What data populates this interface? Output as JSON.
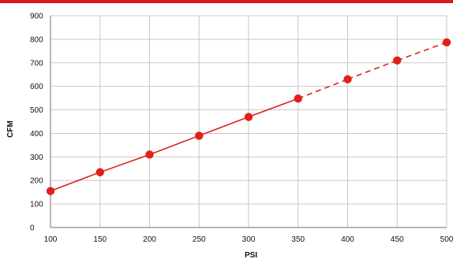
{
  "chart_data": {
    "type": "line",
    "title": "",
    "xlabel": "PSI",
    "ylabel": "CFM",
    "xlim": [
      100,
      500
    ],
    "ylim": [
      0,
      900
    ],
    "x_ticks": [
      100,
      150,
      200,
      250,
      300,
      350,
      400,
      450,
      500
    ],
    "y_ticks": [
      0,
      100,
      200,
      300,
      400,
      500,
      600,
      700,
      800,
      900
    ],
    "grid": true,
    "legend": "none",
    "series": [
      {
        "x": [
          100,
          150,
          200,
          250,
          300,
          350,
          400,
          450,
          500
        ],
        "values": [
          155,
          235,
          310,
          390,
          470,
          548,
          630,
          710,
          787
        ],
        "solid_through_x": 350,
        "dashed_after_x": 350
      }
    ],
    "colors": {
      "series": "#e0201b",
      "top_rule": "#d71920",
      "grid": "#c8c8c8",
      "axes": "#8a8a8a"
    }
  }
}
